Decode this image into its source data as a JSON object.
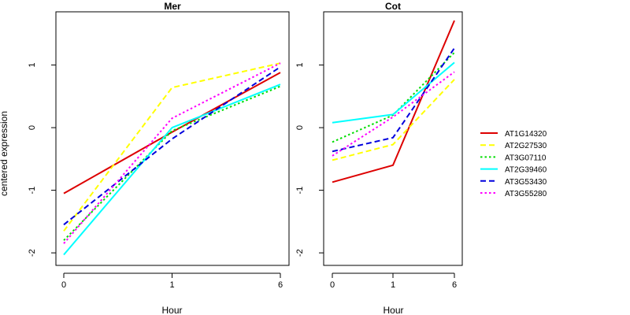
{
  "figure": {
    "ylabel": "centered expression",
    "xlabel": "Hour"
  },
  "chart_data": [
    {
      "type": "line",
      "title": "Mer",
      "xlabel": "Hour",
      "ylabel": "centered expression",
      "x": [
        "0",
        "1",
        "6"
      ],
      "ylim": [
        -2.2,
        1.85
      ],
      "yticks": [
        -2,
        -1,
        0,
        1
      ],
      "series": [
        {
          "name": "AT1G14320",
          "values": [
            -1.05,
            -0.07,
            0.88
          ],
          "color": "#dd0000",
          "dash": "solid"
        },
        {
          "name": "AT2G27530",
          "values": [
            -1.65,
            0.64,
            1.03
          ],
          "color": "#ffff00",
          "dash": "long"
        },
        {
          "name": "AT3G07110",
          "values": [
            -1.8,
            -0.05,
            0.66
          ],
          "color": "#00dd00",
          "dash": "dot"
        },
        {
          "name": "AT2G39460",
          "values": [
            -2.03,
            0.0,
            0.69
          ],
          "color": "#00ffff",
          "dash": "solid"
        },
        {
          "name": "AT3G53430",
          "values": [
            -1.55,
            -0.18,
            0.97
          ],
          "color": "#0000dd",
          "dash": "long"
        },
        {
          "name": "AT3G55280",
          "values": [
            -1.85,
            0.15,
            1.03
          ],
          "color": "#ff00ff",
          "dash": "dot"
        }
      ]
    },
    {
      "type": "line",
      "title": "Cot",
      "xlabel": "Hour",
      "ylabel": "",
      "x": [
        "0",
        "1",
        "6"
      ],
      "ylim": [
        -2.2,
        1.85
      ],
      "yticks": [
        -2,
        -1,
        0,
        1
      ],
      "series": [
        {
          "name": "AT1G14320",
          "values": [
            -0.87,
            -0.6,
            1.71
          ],
          "color": "#dd0000",
          "dash": "solid"
        },
        {
          "name": "AT2G27530",
          "values": [
            -0.52,
            -0.27,
            0.77
          ],
          "color": "#ffff00",
          "dash": "long"
        },
        {
          "name": "AT3G07110",
          "values": [
            -0.23,
            0.2,
            1.2
          ],
          "color": "#00dd00",
          "dash": "dot"
        },
        {
          "name": "AT2G39460",
          "values": [
            0.08,
            0.21,
            1.04
          ],
          "color": "#00ffff",
          "dash": "solid"
        },
        {
          "name": "AT3G53430",
          "values": [
            -0.38,
            -0.16,
            1.27
          ],
          "color": "#0000dd",
          "dash": "long"
        },
        {
          "name": "AT3G55280",
          "values": [
            -0.45,
            0.17,
            0.89
          ],
          "color": "#ff00ff",
          "dash": "dot"
        }
      ]
    }
  ],
  "legend": {
    "placement": "right",
    "entries": [
      {
        "label": "AT1G14320",
        "color": "#dd0000",
        "dash": "solid"
      },
      {
        "label": "AT2G27530",
        "color": "#ffff00",
        "dash": "long"
      },
      {
        "label": "AT3G07110",
        "color": "#00dd00",
        "dash": "dot"
      },
      {
        "label": "AT2G39460",
        "color": "#00ffff",
        "dash": "solid"
      },
      {
        "label": "AT3G53430",
        "color": "#0000dd",
        "dash": "long"
      },
      {
        "label": "AT3G55280",
        "color": "#ff00ff",
        "dash": "dot"
      }
    ]
  }
}
